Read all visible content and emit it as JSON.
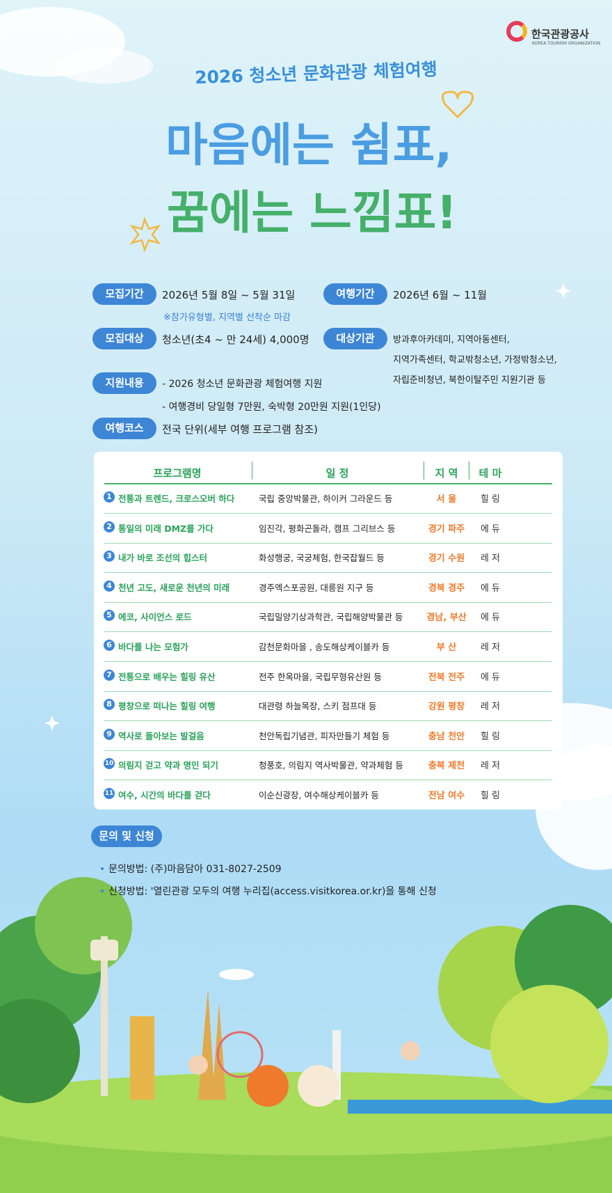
{
  "logo": {
    "name": "한국관광공사",
    "subname": "KOREA TOURISM ORGANIZATION"
  },
  "header": {
    "subtitle": "2026 청소년 문화관광 체험여행",
    "headline": [
      "마음에는 쉼표,",
      "꿈에는 느낌표!"
    ]
  },
  "info": {
    "recruit_period": {
      "label": "모집기간",
      "text": "2026년 5월 8일 ~ 5월 31일",
      "note": "※참가유형별, 지역별 선착순 마감"
    },
    "travel_period": {
      "label": "여행기간",
      "text": "2026년 6월 ~ 11월"
    },
    "target": {
      "label": "모집대상",
      "text": "청소년(초4 ~ 만 24세) 4,000명"
    },
    "institutions": {
      "label": "대상기관",
      "lines": [
        "방과후아카데미, 지역아동센터,",
        "지역가족센터, 학교밖청소년, 가정밖청소년,",
        "자립준비청년, 북한이탈주민 지원기관 등"
      ]
    },
    "support": {
      "label": "지원내용",
      "lines": [
        "- 2026 청소년 문화관광 체험여행 지원",
        "- 여행경비 당일형 7만원, 숙박형 20만원 지원(1인당)"
      ]
    },
    "course": {
      "label": "여행코스",
      "text": "전국 단위(세부 여행 프로그램 참조)"
    }
  },
  "table": {
    "header": [
      "프로그램명",
      "일 정",
      "지 역",
      "테 마"
    ],
    "rows": [
      [
        "1",
        "전통과 트렌드, 크로스오버 하다",
        "국립 중앙박물관, 하이커 그라운드 등",
        "서 울",
        "힐 링"
      ],
      [
        "2",
        "통일의 미래 DMZ를 가다",
        "임진각, 평화곤돌라, 캠프 그리브스 등",
        "경기 파주",
        "에 듀"
      ],
      [
        "3",
        "내가 바로 조선의 힙스터",
        "화성행궁, 국궁체험, 한국잡월드 등",
        "경기 수원",
        "레 저"
      ],
      [
        "4",
        "천년 고도, 새로운 천년의 미래",
        "경주엑스포공원, 대릉원 지구 등",
        "경북 경주",
        "에 듀"
      ],
      [
        "5",
        "에코, 사이언스 로드",
        "국립밀양기상과학관, 국립해양박물관 등",
        "경남, 부산",
        "에 듀"
      ],
      [
        "6",
        "바다를 나는 모험가",
        "감천문화마을 , 송도해상케이블카 등",
        "부 산",
        "레 저"
      ],
      [
        "7",
        "전통으로 배우는 힐링 유산",
        "전주 한옥마을, 국립무형유산원 등",
        "전북 전주",
        "에 듀"
      ],
      [
        "8",
        "평창으로 떠나는 힐링 여행",
        "대관령 하늘목장, 스키 점프대 등",
        "강원 평창",
        "레 저"
      ],
      [
        "9",
        "역사로 돌아보는 발걸음",
        "천안독립기념관, 피자만들기 체험 등",
        "충남 천안",
        "힐 링"
      ],
      [
        "10",
        "의림지 걷고 약과 명인 되기",
        "청풍호, 의림지 역사박물관, 약과체험 등",
        "충북 제천",
        "레 저"
      ],
      [
        "11",
        "여수, 시간의 바다를 걷다",
        "이순신광장, 여수해상케이블카 등",
        "전남 여수",
        "힐 링"
      ]
    ]
  },
  "contact": {
    "label": "문의 및 신청",
    "items": [
      "문의방법: (주)마음담아 031-8027-2509",
      "신청방법: '열린관광 모두의 여행 누리집(access.visitkorea.or.kr)을 통해 신청"
    ]
  }
}
